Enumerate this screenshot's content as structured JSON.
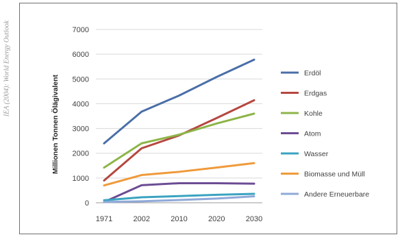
{
  "side_caption": "IEA (2004): World Energy Outlook",
  "colors": {
    "Erdöl": "#4a6fa8",
    "Erdgas": "#b5473f",
    "Kohle": "#8db548",
    "Atom": "#6c4c93",
    "Wasser": "#3aa3c0",
    "Biomasse und Müll": "#ef9a3b",
    "Andere Erneuerbare": "#8fa9d8"
  },
  "chart_data": {
    "type": "line",
    "title": "",
    "xlabel": "",
    "ylabel": "Millionen Tonnen Ölägivalent",
    "categories": [
      "1971",
      "2002",
      "2010",
      "2020",
      "2030"
    ],
    "ylim": [
      0,
      7000
    ],
    "yticks": [
      "0",
      "1000",
      "2000",
      "3000",
      "4000",
      "5000",
      "6000",
      "7000"
    ],
    "grid": "horizontal",
    "legend_position": "right",
    "series": [
      {
        "name": "Erdöl",
        "values": [
          2400,
          3680,
          4330,
          5080,
          5780
        ]
      },
      {
        "name": "Erdgas",
        "values": [
          900,
          2200,
          2720,
          3420,
          4140
        ]
      },
      {
        "name": "Kohle",
        "values": [
          1420,
          2400,
          2750,
          3200,
          3600
        ]
      },
      {
        "name": "Atom",
        "values": [
          30,
          710,
          790,
          790,
          770
        ]
      },
      {
        "name": "Wasser",
        "values": [
          100,
          220,
          270,
          320,
          360
        ]
      },
      {
        "name": "Biomasse und Müll",
        "values": [
          700,
          1120,
          1250,
          1420,
          1600
        ]
      },
      {
        "name": "Andere Erneuerbare",
        "values": [
          30,
          60,
          110,
          170,
          260
        ]
      }
    ]
  }
}
